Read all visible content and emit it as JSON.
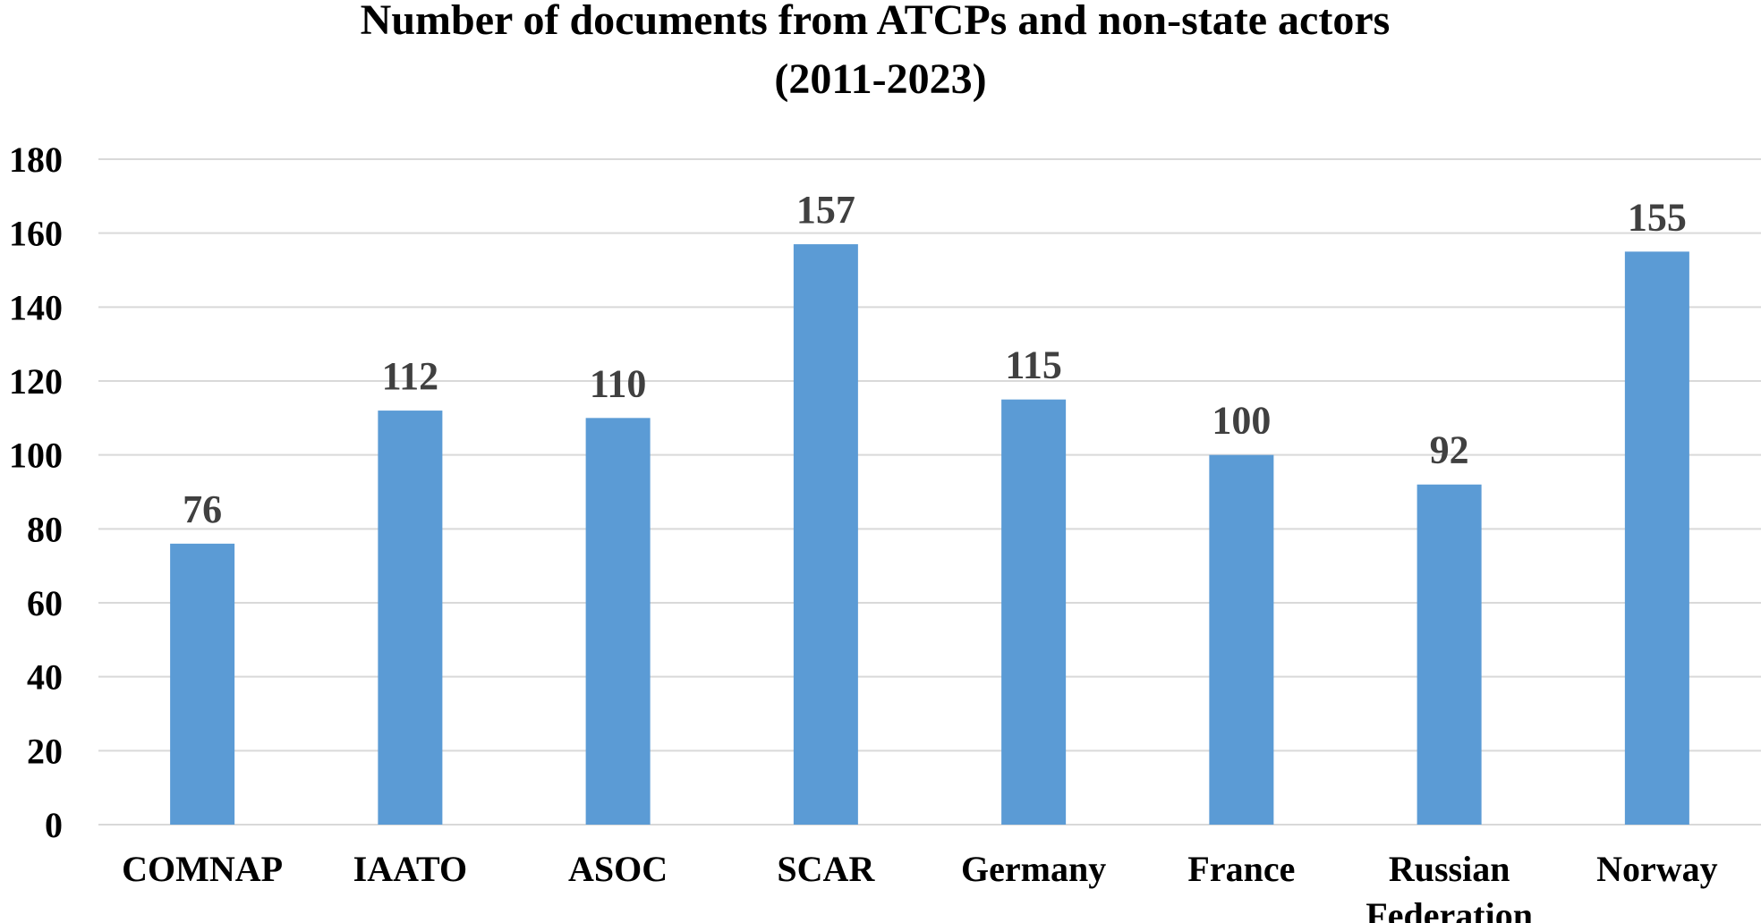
{
  "chart_data": {
    "type": "bar",
    "title": [
      "Number of documents from ATCPs and non-state actors",
      "(2011-2023)"
    ],
    "xlabel": "",
    "ylabel": "",
    "categories": [
      [
        "COMNAP"
      ],
      [
        "IAATO"
      ],
      [
        "ASOC"
      ],
      [
        "SCAR"
      ],
      [
        "Germany"
      ],
      [
        "France"
      ],
      [
        "Russian",
        "Federation"
      ],
      [
        "Norway"
      ]
    ],
    "values": [
      76,
      112,
      110,
      157,
      115,
      100,
      92,
      155
    ],
    "data_labels": [
      "76",
      "112",
      "110",
      "157",
      "115",
      "100",
      "92",
      "155"
    ],
    "ylim": [
      0,
      180
    ],
    "yticks": [
      0,
      20,
      40,
      60,
      80,
      100,
      120,
      140,
      160,
      180
    ],
    "grid": true,
    "legend": "none",
    "colors": {
      "bar": "#5B9BD5",
      "grid": "#D9D9D9",
      "data_label": "#404040",
      "text": "#000000"
    }
  }
}
